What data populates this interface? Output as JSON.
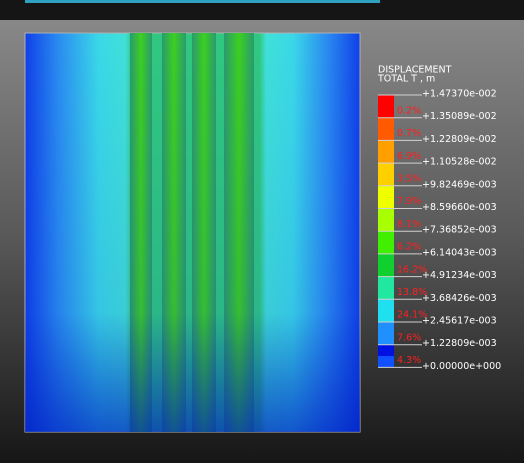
{
  "legend": {
    "title": "DISPLACEMENT",
    "subtitle": "TOTAL T , m",
    "levels": [
      "+1.47370e-002",
      "+1.35089e-002",
      "+1.22809e-002",
      "+1.10528e-002",
      "+9.82469e-003",
      "+8.59660e-003",
      "+7.36852e-003",
      "+6.14043e-003",
      "+4.91234e-003",
      "+3.68426e-003",
      "+2.45617e-003",
      "+1.22809e-003",
      "+0.00000e+000"
    ],
    "percentages": [
      "0.2%",
      "0.7%",
      "6.9%",
      "3.5%",
      "7.9%",
      "8.1%",
      "6.2%",
      "16.2%",
      "13.8%",
      "24.1%",
      "7.6%",
      "4.3%"
    ]
  }
}
